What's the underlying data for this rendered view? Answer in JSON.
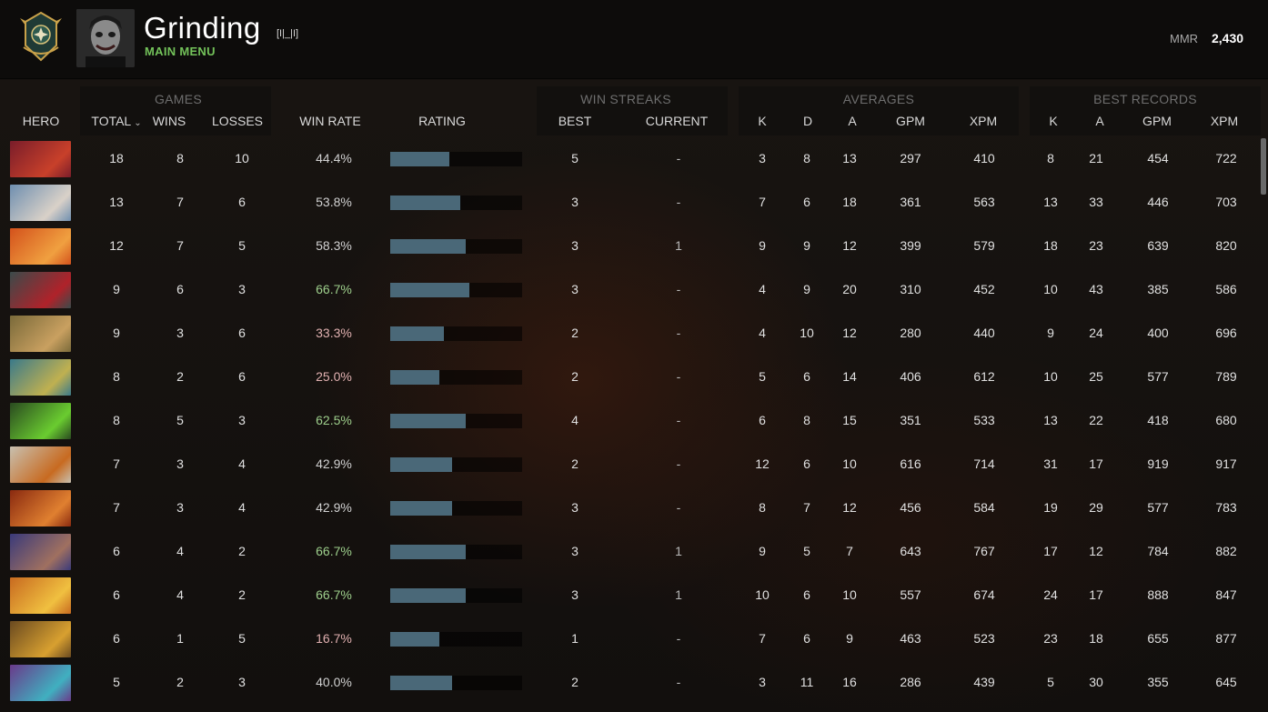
{
  "profile": {
    "username": "Grinding",
    "tag": "[I|_|I]",
    "status": "MAIN MENU",
    "mmr_label": "MMR",
    "mmr_value": "2,430",
    "rank_icon": "rank-medal-icon",
    "avatar_icon": "player-avatar"
  },
  "groups": {
    "games": "GAMES",
    "win_streaks": "WIN STREAKS",
    "averages": "AVERAGES",
    "best_records": "BEST RECORDS"
  },
  "columns": {
    "hero": "HERO",
    "total": "TOTAL",
    "wins": "WINS",
    "losses": "LOSSES",
    "win_rate": "WIN RATE",
    "rating": "RATING",
    "best": "BEST",
    "current": "CURRENT",
    "avg_k": "K",
    "avg_d": "D",
    "avg_a": "A",
    "avg_gpm": "GPM",
    "avg_xpm": "XPM",
    "rec_k": "K",
    "rec_a": "A",
    "rec_gpm": "GPM",
    "rec_xpm": "XPM"
  },
  "colors": {
    "status": "#73c25a",
    "rating_bar": "#4a6878",
    "win_rate_high": "#9ecf8c",
    "win_rate_low": "#e0b0b0"
  },
  "rows": [
    {
      "total": "18",
      "wins": "8",
      "losses": "10",
      "win_rate": "44.4%",
      "rating": 0.45,
      "best": "5",
      "current": "-",
      "k": "3",
      "d": "8",
      "a": "13",
      "gpm": "297",
      "xpm": "410",
      "rk": "8",
      "ra": "21",
      "rgpm": "454",
      "rxpm": "722",
      "c1": "#7a1d2a",
      "c2": "#c8402a"
    },
    {
      "total": "13",
      "wins": "7",
      "losses": "6",
      "win_rate": "53.8%",
      "rating": 0.53,
      "best": "3",
      "current": "-",
      "k": "7",
      "d": "6",
      "a": "18",
      "gpm": "361",
      "xpm": "563",
      "rk": "13",
      "ra": "33",
      "rgpm": "446",
      "rxpm": "703",
      "c1": "#6f8fb0",
      "c2": "#d9d1c8"
    },
    {
      "total": "12",
      "wins": "7",
      "losses": "5",
      "win_rate": "58.3%",
      "rating": 0.57,
      "best": "3",
      "current": "1",
      "k": "9",
      "d": "9",
      "a": "12",
      "gpm": "399",
      "xpm": "579",
      "rk": "18",
      "ra": "23",
      "rgpm": "639",
      "rxpm": "820",
      "c1": "#d4521c",
      "c2": "#f0a040"
    },
    {
      "total": "9",
      "wins": "6",
      "losses": "3",
      "win_rate": "66.7%",
      "rating": 0.6,
      "best": "3",
      "current": "-",
      "k": "4",
      "d": "9",
      "a": "20",
      "gpm": "310",
      "xpm": "452",
      "rk": "10",
      "ra": "43",
      "rgpm": "385",
      "rxpm": "586",
      "c1": "#3b4a4a",
      "c2": "#b0222a"
    },
    {
      "total": "9",
      "wins": "3",
      "losses": "6",
      "win_rate": "33.3%",
      "rating": 0.41,
      "best": "2",
      "current": "-",
      "k": "4",
      "d": "10",
      "a": "12",
      "gpm": "280",
      "xpm": "440",
      "rk": "9",
      "ra": "24",
      "rgpm": "400",
      "rxpm": "696",
      "c1": "#7a6a3a",
      "c2": "#c9a060"
    },
    {
      "total": "8",
      "wins": "2",
      "losses": "6",
      "win_rate": "25.0%",
      "rating": 0.37,
      "best": "2",
      "current": "-",
      "k": "5",
      "d": "6",
      "a": "14",
      "gpm": "406",
      "xpm": "612",
      "rk": "10",
      "ra": "25",
      "rgpm": "577",
      "rxpm": "789",
      "c1": "#3a7a8a",
      "c2": "#c0b050"
    },
    {
      "total": "8",
      "wins": "5",
      "losses": "3",
      "win_rate": "62.5%",
      "rating": 0.57,
      "best": "4",
      "current": "-",
      "k": "6",
      "d": "8",
      "a": "15",
      "gpm": "351",
      "xpm": "533",
      "rk": "13",
      "ra": "22",
      "rgpm": "418",
      "rxpm": "680",
      "c1": "#2a4a20",
      "c2": "#6acc30"
    },
    {
      "total": "7",
      "wins": "3",
      "losses": "4",
      "win_rate": "42.9%",
      "rating": 0.47,
      "best": "2",
      "current": "-",
      "k": "12",
      "d": "6",
      "a": "10",
      "gpm": "616",
      "xpm": "714",
      "rk": "31",
      "ra": "17",
      "rgpm": "919",
      "rxpm": "917",
      "c1": "#c8c0b0",
      "c2": "#c86a20"
    },
    {
      "total": "7",
      "wins": "3",
      "losses": "4",
      "win_rate": "42.9%",
      "rating": 0.47,
      "best": "3",
      "current": "-",
      "k": "8",
      "d": "7",
      "a": "12",
      "gpm": "456",
      "xpm": "584",
      "rk": "19",
      "ra": "29",
      "rgpm": "577",
      "rxpm": "783",
      "c1": "#8a2a10",
      "c2": "#e08030"
    },
    {
      "total": "6",
      "wins": "4",
      "losses": "2",
      "win_rate": "66.7%",
      "rating": 0.57,
      "best": "3",
      "current": "1",
      "k": "9",
      "d": "5",
      "a": "7",
      "gpm": "643",
      "xpm": "767",
      "rk": "17",
      "ra": "12",
      "rgpm": "784",
      "rxpm": "882",
      "c1": "#3a3a7a",
      "c2": "#a07060"
    },
    {
      "total": "6",
      "wins": "4",
      "losses": "2",
      "win_rate": "66.7%",
      "rating": 0.57,
      "best": "3",
      "current": "1",
      "k": "10",
      "d": "6",
      "a": "10",
      "gpm": "557",
      "xpm": "674",
      "rk": "24",
      "ra": "17",
      "rgpm": "888",
      "rxpm": "847",
      "c1": "#c86a20",
      "c2": "#f0c040"
    },
    {
      "total": "6",
      "wins": "1",
      "losses": "5",
      "win_rate": "16.7%",
      "rating": 0.37,
      "best": "1",
      "current": "-",
      "k": "7",
      "d": "6",
      "a": "9",
      "gpm": "463",
      "xpm": "523",
      "rk": "23",
      "ra": "18",
      "rgpm": "655",
      "rxpm": "877",
      "c1": "#6a4a20",
      "c2": "#d8a030"
    },
    {
      "total": "5",
      "wins": "2",
      "losses": "3",
      "win_rate": "40.0%",
      "rating": 0.47,
      "best": "2",
      "current": "-",
      "k": "3",
      "d": "11",
      "a": "16",
      "gpm": "286",
      "xpm": "439",
      "rk": "5",
      "ra": "30",
      "rgpm": "355",
      "rxpm": "645",
      "c1": "#6a3a8a",
      "c2": "#40b0c0"
    }
  ]
}
